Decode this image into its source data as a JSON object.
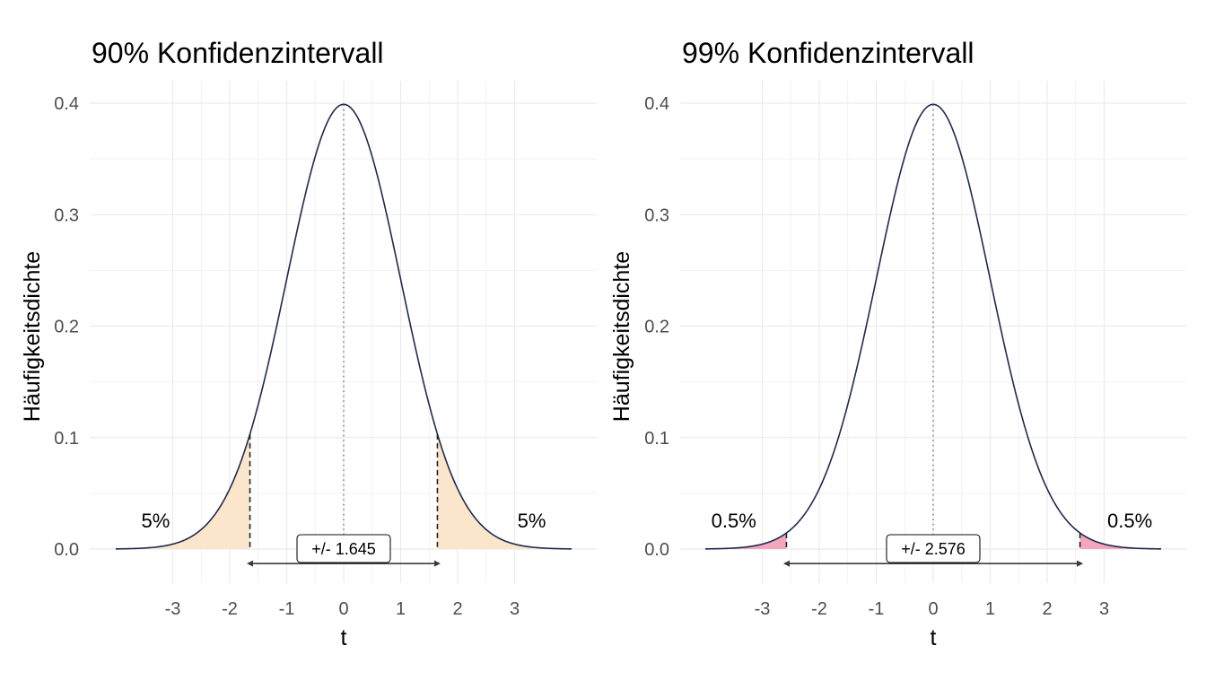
{
  "chart_data": [
    {
      "type": "area",
      "title": "90% Konfidenzintervall",
      "xlabel": "t",
      "ylabel": "Häufigkeitsdichte",
      "xlim": [
        -4,
        4
      ],
      "ylim": [
        -0.02,
        0.4
      ],
      "x_ticks": [
        -3,
        -2,
        -1,
        0,
        1,
        2,
        3
      ],
      "x_tick_labels": [
        "-3",
        "-2",
        "-1",
        "0",
        "1",
        "2",
        "3"
      ],
      "y_ticks": [
        0.0,
        0.1,
        0.2,
        0.3,
        0.4
      ],
      "y_tick_labels": [
        "0.0",
        "0.1",
        "0.2",
        "0.3",
        "0.4"
      ],
      "grid": true,
      "distribution": "Standardnormalverteilung",
      "critical_value": 1.645,
      "shaded_tails": [
        [
          -4,
          -1.645
        ],
        [
          1.645,
          4
        ]
      ],
      "tail_labels": [
        {
          "text": "5%",
          "x": -3.3,
          "y": 0.02
        },
        {
          "text": "5%",
          "x": 3.3,
          "y": 0.02
        }
      ],
      "arrow": {
        "from": -1.645,
        "to": 1.645,
        "y": -0.013
      },
      "annotation": {
        "text": "+/- 1.645",
        "x": 0,
        "y": 0
      },
      "shade_color": "#fbe6cc",
      "line_color": "#1f2a4d"
    },
    {
      "type": "area",
      "title": "99% Konfidenzintervall",
      "xlabel": "t",
      "ylabel": "Häufigkeitsdichte",
      "xlim": [
        -4,
        4
      ],
      "ylim": [
        -0.02,
        0.4
      ],
      "x_ticks": [
        -3,
        -2,
        -1,
        0,
        1,
        2,
        3
      ],
      "x_tick_labels": [
        "-3",
        "-2",
        "-1",
        "0",
        "1",
        "2",
        "3"
      ],
      "y_ticks": [
        0.0,
        0.1,
        0.2,
        0.3,
        0.4
      ],
      "y_tick_labels": [
        "0.0",
        "0.1",
        "0.2",
        "0.3",
        "0.4"
      ],
      "grid": true,
      "distribution": "Standardnormalverteilung",
      "critical_value": 2.576,
      "shaded_tails": [
        [
          -4,
          -2.576
        ],
        [
          2.576,
          4
        ]
      ],
      "tail_labels": [
        {
          "text": "0.5%",
          "x": -3.5,
          "y": 0.02
        },
        {
          "text": "0.5%",
          "x": 3.45,
          "y": 0.02
        }
      ],
      "arrow": {
        "from": -2.576,
        "to": 2.576,
        "y": -0.013
      },
      "annotation": {
        "text": "+/- 2.576",
        "x": 0,
        "y": 0
      },
      "shade_color": "#f4a6bd",
      "line_color": "#1f2a4d"
    }
  ]
}
